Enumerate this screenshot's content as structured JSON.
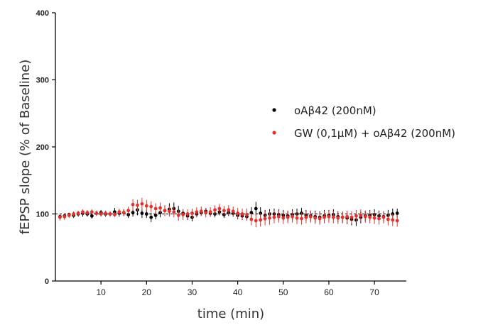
{
  "chart_data": {
    "type": "scatter",
    "xlabel": "time (min)",
    "ylabel": "fEPSP slope (% of Baseline)",
    "xlim": [
      0,
      77
    ],
    "ylim": [
      0,
      400
    ],
    "x_ticks": [
      10,
      20,
      30,
      40,
      50,
      60,
      70
    ],
    "y_ticks": [
      0,
      100,
      200,
      300,
      400
    ],
    "baseline": 100,
    "legend_position": "right",
    "error_bars": true,
    "series": [
      {
        "name": "oAβ42 (200nM)",
        "color": "#000000",
        "x": [
          1,
          2,
          3,
          4,
          5,
          6,
          7,
          8,
          9,
          10,
          11,
          12,
          13,
          14,
          15,
          16,
          17,
          18,
          19,
          20,
          21,
          22,
          23,
          24,
          25,
          26,
          27,
          28,
          29,
          30,
          31,
          32,
          33,
          34,
          35,
          36,
          37,
          38,
          39,
          40,
          41,
          42,
          43,
          44,
          45,
          46,
          47,
          48,
          49,
          50,
          51,
          52,
          53,
          54,
          55,
          56,
          57,
          58,
          59,
          60,
          61,
          62,
          63,
          64,
          65,
          66,
          67,
          68,
          69,
          70,
          71,
          72,
          73,
          74,
          75
        ],
        "values": [
          96,
          97,
          99,
          98,
          100,
          101,
          100,
          97,
          101,
          102,
          100,
          100,
          103,
          101,
          102,
          99,
          102,
          106,
          101,
          100,
          95,
          98,
          102,
          105,
          107,
          108,
          104,
          101,
          97,
          95,
          100,
          102,
          104,
          101,
          100,
          103,
          99,
          102,
          101,
          98,
          97,
          96,
          102,
          108,
          101,
          98,
          100,
          100,
          99,
          98,
          97,
          99,
          100,
          101,
          98,
          97,
          96,
          95,
          97,
          98,
          99,
          96,
          95,
          94,
          92,
          91,
          95,
          97,
          98,
          99,
          97,
          96,
          98,
          100,
          101
        ],
        "errors": [
          4,
          4,
          3,
          4,
          4,
          5,
          4,
          4,
          3,
          4,
          4,
          4,
          6,
          5,
          5,
          5,
          6,
          8,
          7,
          6,
          7,
          6,
          7,
          8,
          9,
          9,
          8,
          6,
          6,
          6,
          5,
          5,
          5,
          5,
          5,
          5,
          5,
          5,
          5,
          6,
          6,
          6,
          8,
          10,
          9,
          8,
          7,
          8,
          8,
          8,
          8,
          8,
          8,
          8,
          8,
          8,
          9,
          9,
          9,
          8,
          8,
          8,
          8,
          9,
          9,
          9,
          9,
          8,
          8,
          8,
          8,
          8,
          8,
          8,
          7
        ]
      },
      {
        "name": "GW (0,1μM) + oAβ42 (200nM)",
        "color": "#e8302b",
        "x": [
          1,
          2,
          3,
          4,
          5,
          6,
          7,
          8,
          9,
          10,
          11,
          12,
          13,
          14,
          15,
          16,
          17,
          18,
          19,
          20,
          21,
          22,
          23,
          24,
          25,
          26,
          27,
          28,
          29,
          30,
          31,
          32,
          33,
          34,
          35,
          36,
          37,
          38,
          39,
          40,
          41,
          42,
          43,
          44,
          45,
          46,
          47,
          48,
          49,
          50,
          51,
          52,
          53,
          54,
          55,
          56,
          57,
          58,
          59,
          60,
          61,
          62,
          63,
          64,
          65,
          66,
          67,
          68,
          69,
          70,
          71,
          72,
          73,
          74,
          75
        ],
        "values": [
          95,
          96,
          98,
          100,
          101,
          103,
          102,
          103,
          101,
          100,
          101,
          100,
          99,
          103,
          102,
          105,
          114,
          113,
          115,
          112,
          111,
          108,
          109,
          105,
          104,
          103,
          98,
          99,
          100,
          101,
          103,
          104,
          102,
          103,
          106,
          108,
          105,
          106,
          104,
          101,
          100,
          99,
          92,
          90,
          91,
          93,
          94,
          95,
          96,
          94,
          95,
          96,
          94,
          93,
          95,
          96,
          94,
          93,
          95,
          96,
          95,
          94,
          95,
          96,
          95,
          97,
          98,
          96,
          95,
          94,
          93,
          95,
          92,
          91,
          90
        ],
        "errors": [
          5,
          5,
          4,
          4,
          4,
          4,
          4,
          4,
          4,
          4,
          4,
          4,
          4,
          5,
          5,
          6,
          8,
          8,
          9,
          9,
          8,
          8,
          8,
          8,
          8,
          8,
          8,
          8,
          7,
          7,
          7,
          7,
          7,
          7,
          7,
          7,
          7,
          7,
          7,
          8,
          8,
          9,
          9,
          10,
          10,
          10,
          10,
          9,
          9,
          9,
          9,
          9,
          9,
          9,
          9,
          9,
          9,
          9,
          9,
          9,
          9,
          9,
          9,
          9,
          9,
          9,
          9,
          9,
          9,
          9,
          9,
          9,
          9,
          9,
          9
        ]
      }
    ]
  }
}
